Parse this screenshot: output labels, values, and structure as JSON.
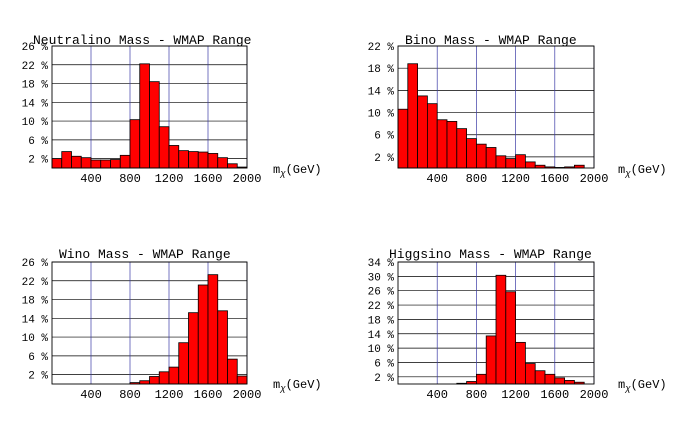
{
  "chart_data": [
    {
      "type": "bar",
      "title": "Neutralino Mass - WMAP Range",
      "xlabel": "mχ (GeV)",
      "xlabel_main": "m",
      "xlabel_sub": "χ",
      "xlabel_unit": "(GeV)",
      "xlim": [
        0,
        2000
      ],
      "ylim": [
        0,
        26
      ],
      "x_ticks": [
        "400",
        "800",
        "1200",
        "1600",
        "2000"
      ],
      "y_ticks": [
        "2 %",
        "6 %",
        "10 %",
        "14 %",
        "18 %",
        "22 %",
        "26 %"
      ],
      "bin_width": 100,
      "bin_starts": [
        0,
        100,
        200,
        300,
        400,
        500,
        600,
        700,
        800,
        900,
        1000,
        1100,
        1200,
        1300,
        1400,
        1500,
        1600,
        1700,
        1800,
        1900
      ],
      "values": [
        2.0,
        3.5,
        2.5,
        2.2,
        1.7,
        1.7,
        1.8,
        2.7,
        10.3,
        22.2,
        18.4,
        8.8,
        4.8,
        3.7,
        3.5,
        3.4,
        3.1,
        2.2,
        0.9,
        0.2
      ],
      "grid": true,
      "bar_color": "#ff0000"
    },
    {
      "type": "bar",
      "title": "Bino Mass - WMAP Range",
      "xlabel": "mχ (GeV)",
      "xlabel_main": "m",
      "xlabel_sub": "χ",
      "xlabel_unit": "(GeV)",
      "xlim": [
        0,
        2000
      ],
      "ylim": [
        0,
        22
      ],
      "x_ticks": [
        "400",
        "800",
        "1200",
        "1600",
        "2000"
      ],
      "y_ticks": [
        "2 %",
        "6 %",
        "10 %",
        "14 %",
        "18 %",
        "22 %"
      ],
      "bin_width": 100,
      "bin_starts": [
        0,
        100,
        200,
        300,
        400,
        500,
        600,
        700,
        800,
        900,
        1000,
        1100,
        1200,
        1300,
        1400,
        1500,
        1600,
        1700,
        1800,
        1900
      ],
      "values": [
        10.6,
        18.8,
        13.0,
        11.6,
        8.7,
        8.4,
        7.1,
        5.3,
        4.3,
        3.7,
        2.2,
        1.7,
        2.4,
        1.1,
        0.5,
        0.2,
        0.1,
        0.2,
        0.5,
        0.0
      ],
      "grid": true,
      "bar_color": "#ff0000"
    },
    {
      "type": "bar",
      "title": "Wino Mass - WMAP Range",
      "xlabel": "mχ (GeV)",
      "xlabel_main": "m",
      "xlabel_sub": "χ",
      "xlabel_unit": "(GeV)",
      "xlim": [
        0,
        2000
      ],
      "ylim": [
        0,
        26
      ],
      "x_ticks": [
        "400",
        "800",
        "1200",
        "1600",
        "2000"
      ],
      "y_ticks": [
        "2 %",
        "6 %",
        "10 %",
        "14 %",
        "18 %",
        "22 %",
        "26 %"
      ],
      "bin_width": 100,
      "bin_starts": [
        0,
        100,
        200,
        300,
        400,
        500,
        600,
        700,
        800,
        900,
        1000,
        1100,
        1200,
        1300,
        1400,
        1500,
        1600,
        1700,
        1800,
        1900
      ],
      "values": [
        0,
        0,
        0,
        0,
        0,
        0,
        0,
        0,
        0.3,
        0.7,
        1.6,
        2.6,
        3.6,
        8.8,
        15.2,
        21.1,
        23.3,
        15.6,
        5.3,
        1.7
      ],
      "grid": true,
      "bar_color": "#ff0000"
    },
    {
      "type": "bar",
      "title": "Higgsino Mass - WMAP Range",
      "xlabel": "mχ (GeV)",
      "xlabel_main": "m",
      "xlabel_sub": "χ",
      "xlabel_unit": "(GeV)",
      "xlim": [
        0,
        2000
      ],
      "ylim": [
        0,
        34
      ],
      "x_ticks": [
        "400",
        "800",
        "1200",
        "1600",
        "2000"
      ],
      "y_ticks": [
        "2 %",
        "6 %",
        "10 %",
        "14 %",
        "18 %",
        "22 %",
        "26 %",
        "30 %",
        "34 %"
      ],
      "bin_width": 100,
      "bin_starts": [
        0,
        100,
        200,
        300,
        400,
        500,
        600,
        700,
        800,
        900,
        1000,
        1100,
        1200,
        1300,
        1400,
        1500,
        1600,
        1700,
        1800,
        1900
      ],
      "values": [
        0,
        0,
        0,
        0,
        0,
        0,
        0.2,
        0.7,
        2.7,
        13.4,
        30.3,
        25.7,
        11.6,
        5.7,
        3.7,
        2.7,
        1.7,
        1.0,
        0.5,
        0.0
      ],
      "grid": true,
      "bar_color": "#ff0000"
    }
  ]
}
